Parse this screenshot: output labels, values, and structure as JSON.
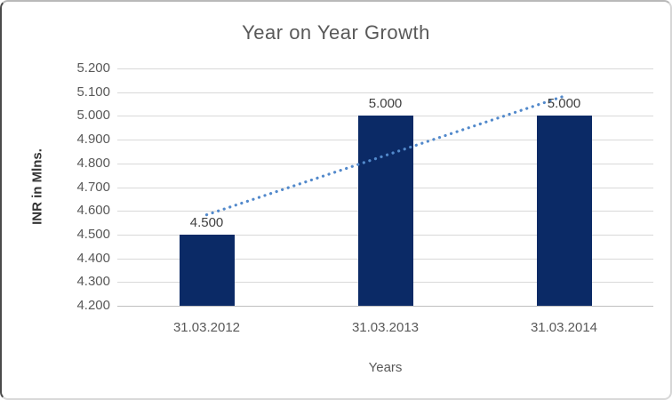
{
  "chart_data": {
    "type": "bar",
    "title": "Year on Year Growth",
    "xlabel": "Years",
    "ylabel": "INR in Mlns.",
    "categories": [
      "31.03.2012",
      "31.03.2013",
      "31.03.2014"
    ],
    "values": [
      4.5,
      5.0,
      5.0
    ],
    "data_labels": [
      "4.500",
      "5.000",
      "5.000"
    ],
    "y_ticks": [
      "5.200",
      "5.100",
      "5.000",
      "4.900",
      "4.800",
      "4.700",
      "4.600",
      "4.500",
      "4.400",
      "4.300",
      "4.200"
    ],
    "ylim": [
      4.2,
      5.2
    ],
    "grid": true,
    "legend": "none",
    "bar_color": "#0b2a66",
    "trendline": {
      "type": "linear",
      "style": "dotted",
      "color": "#5289cb"
    },
    "colors": {
      "grid": "#d9d9d9",
      "axis_line": "#bfbfbf",
      "title_text": "#595959",
      "tick_text": "#595959",
      "data_label_text": "#404040",
      "axis_title_text": "#333333"
    }
  }
}
